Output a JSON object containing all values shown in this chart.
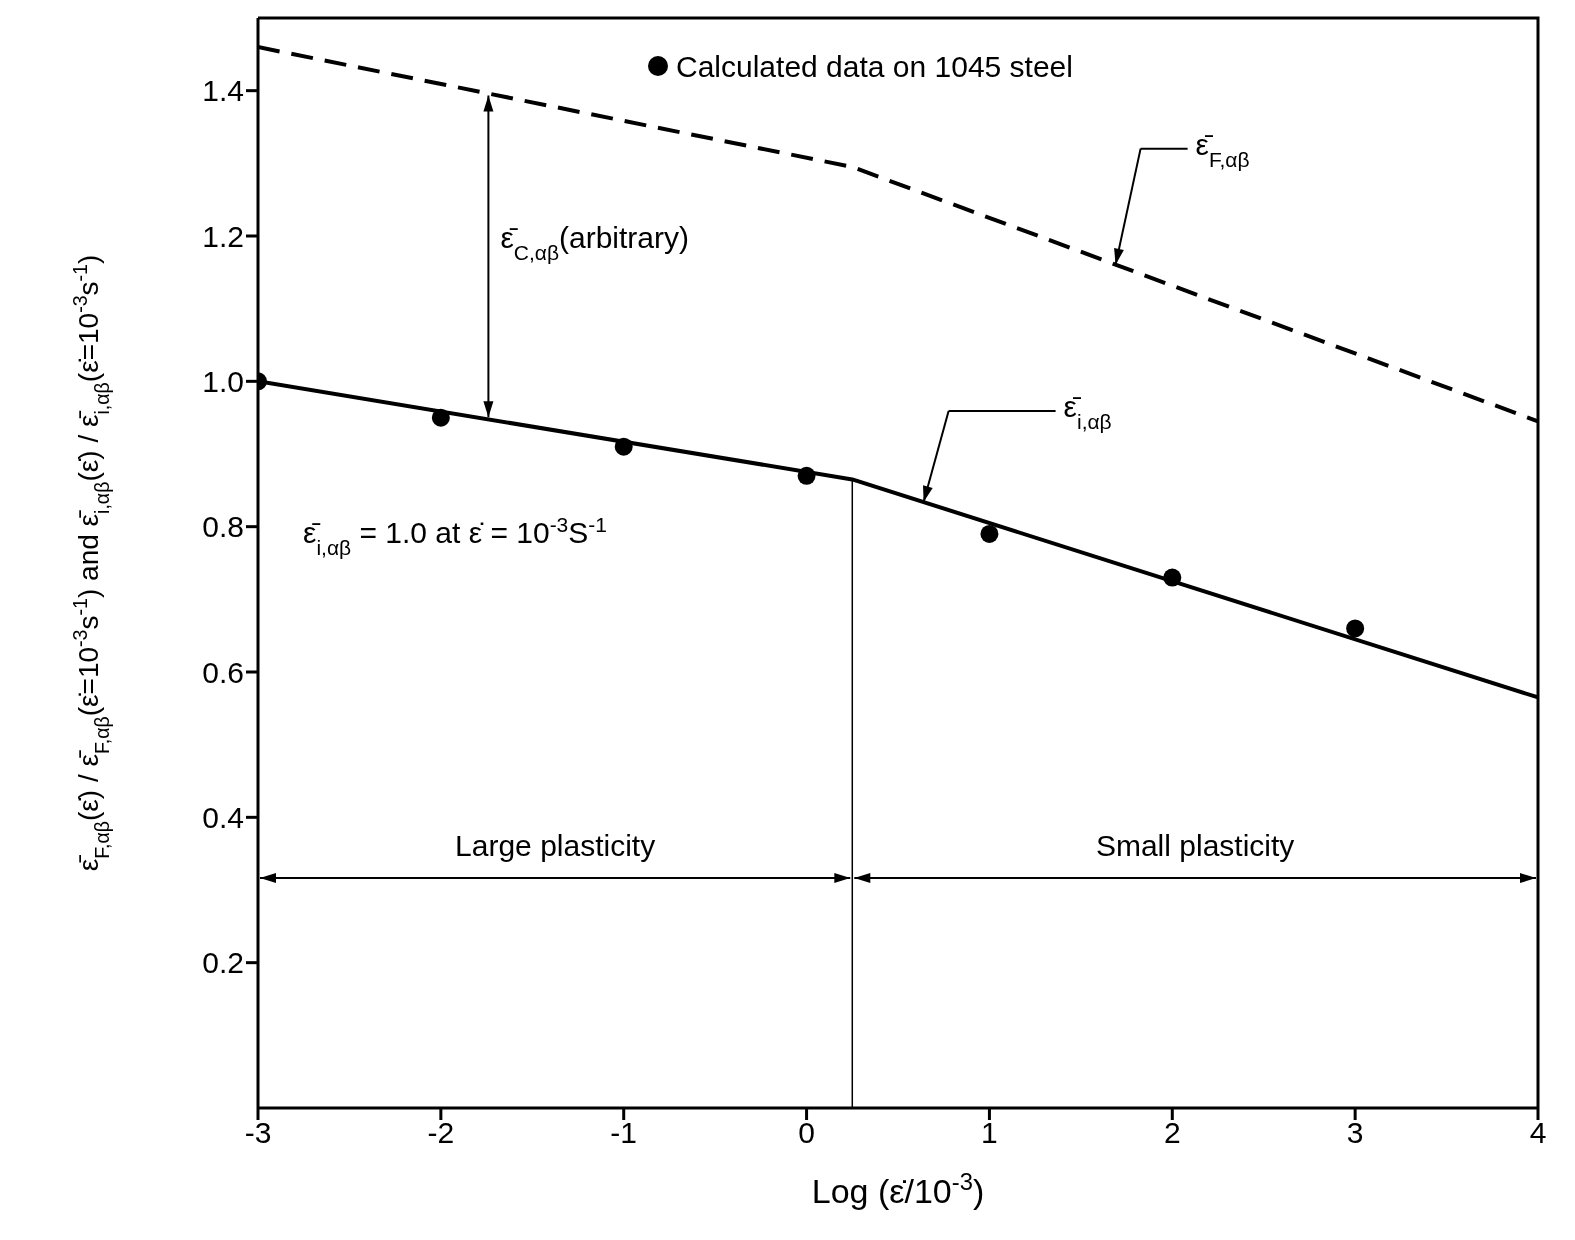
{
  "chart_data": {
    "type": "line",
    "xlabel": "Log (ε̇/10$^{-3}$)",
    "ylabel": "ε̄$_{F,αβ}$(ε̇) / ε̄$_{F,αβ}$(ε̇=10$^{-3}$s$^{-1}$)  and  ε̄$_{i,αβ}$(ε̇) / ε̄$_{i,αβ}$(ε̇=10$^{-3}$s$^{-1}$)",
    "xlim": [
      -3,
      4
    ],
    "xticks": [
      -3,
      -2,
      -1,
      0,
      1,
      2,
      3,
      4
    ],
    "ylim": [
      0,
      1.5
    ],
    "yticks": [
      0.2,
      0.4,
      0.6,
      {
        "value": 0.8,
        "label": "0.8"
      },
      {
        "value": 1,
        "label": "1.0"
      },
      1.2,
      1.4
    ],
    "legend": "top",
    "series": [
      {
        "name": "Calculated data on 1045 steel",
        "type": "scatter",
        "marker": "circle",
        "color": "#000000",
        "x": [
          -3,
          -2,
          -1,
          0,
          1,
          2,
          3
        ],
        "values": [
          1.0,
          0.95,
          0.91,
          0.87,
          0.79,
          0.73,
          0.66
        ]
      },
      {
        "line_style": "solid",
        "marker": "none",
        "color": "#000000",
        "x": [
          -3,
          0.25,
          4
        ],
        "values": [
          1.0,
          0.865,
          0.565
        ]
      },
      {
        "line_style": "dashed",
        "marker": "none",
        "color": "#000000",
        "x": [
          -3,
          0.25,
          4
        ],
        "values": [
          1.46,
          1.295,
          0.945
        ]
      },
      {
        "line_style": "solid",
        "marker": "none",
        "color": "#000000",
        "x": [
          0.25,
          0.25
        ],
        "values": [
          0,
          0.865
        ]
      }
    ],
    "annotations": [
      "ε̄$_{F,αβ}$",
      "ε̄$_{i,αβ}$",
      "ε̄$_{C,αβ}$(arbitrary)",
      "Large plasticity",
      "Small plasticity",
      "ε̄$_{i,αβ}$ = 1.0 at ε̇ = 10$^{-3}$S$^{-1}$"
    ]
  }
}
